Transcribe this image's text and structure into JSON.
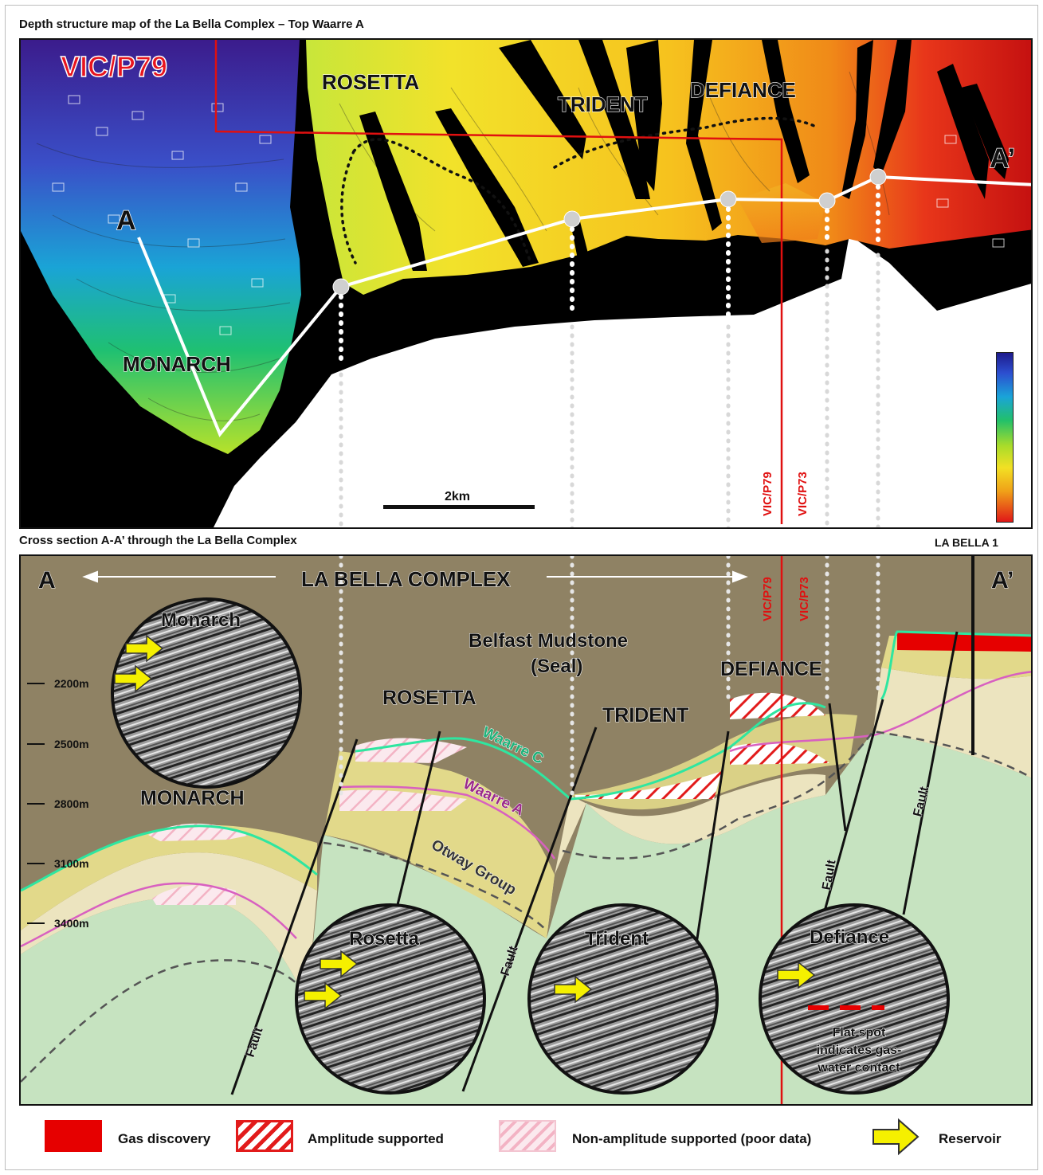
{
  "map": {
    "title": "Depth structure map of the La Bella Complex – Top Waarre A",
    "permit_label": "VIC/P79",
    "fields": [
      "ROSETTA",
      "TRIDENT",
      "DEFIANCE",
      "MONARCH"
    ],
    "point_a": "A",
    "point_a_prime": "A’",
    "scale_label": "2km",
    "boundary_labels": [
      "VIC/P79",
      "VIC/P73"
    ]
  },
  "section": {
    "title": "Cross section A-A’ through the La Bella Complex",
    "well_label": "LA BELLA 1",
    "point_a": "A",
    "point_a_prime": "A’",
    "complex_label": "LA BELLA COMPLEX",
    "seal_label_1": "Belfast Mudstone",
    "seal_label_2": "(Seal)",
    "fields": [
      "MONARCH",
      "ROSETTA",
      "TRIDENT",
      "DEFIANCE"
    ],
    "horizons": [
      "Waarre C",
      "Waarre A",
      "Otway Group"
    ],
    "fault_label": "Fault",
    "boundary_labels": [
      "VIC/P79",
      "VIC/P73"
    ],
    "depth_ticks": [
      "2200m",
      "2500m",
      "2800m",
      "3100m",
      "3400m"
    ],
    "insets": [
      "Monarch",
      "Rosetta",
      "Trident",
      "Defiance"
    ],
    "flat_spot_note": [
      "Flat spot",
      "indicates gas-",
      "water contact"
    ]
  },
  "legend": {
    "gas": "Gas discovery",
    "amplitude": "Amplitude supported",
    "non_amplitude": "Non-amplitude supported (poor data)",
    "reservoir": "Reservoir"
  },
  "colors": {
    "gas": "#e60000",
    "waarre_c": "#2ee6a0",
    "waarre_a": "#d860c0",
    "reservoir_arrow": "#f5f000",
    "seal": "#8f8264"
  }
}
